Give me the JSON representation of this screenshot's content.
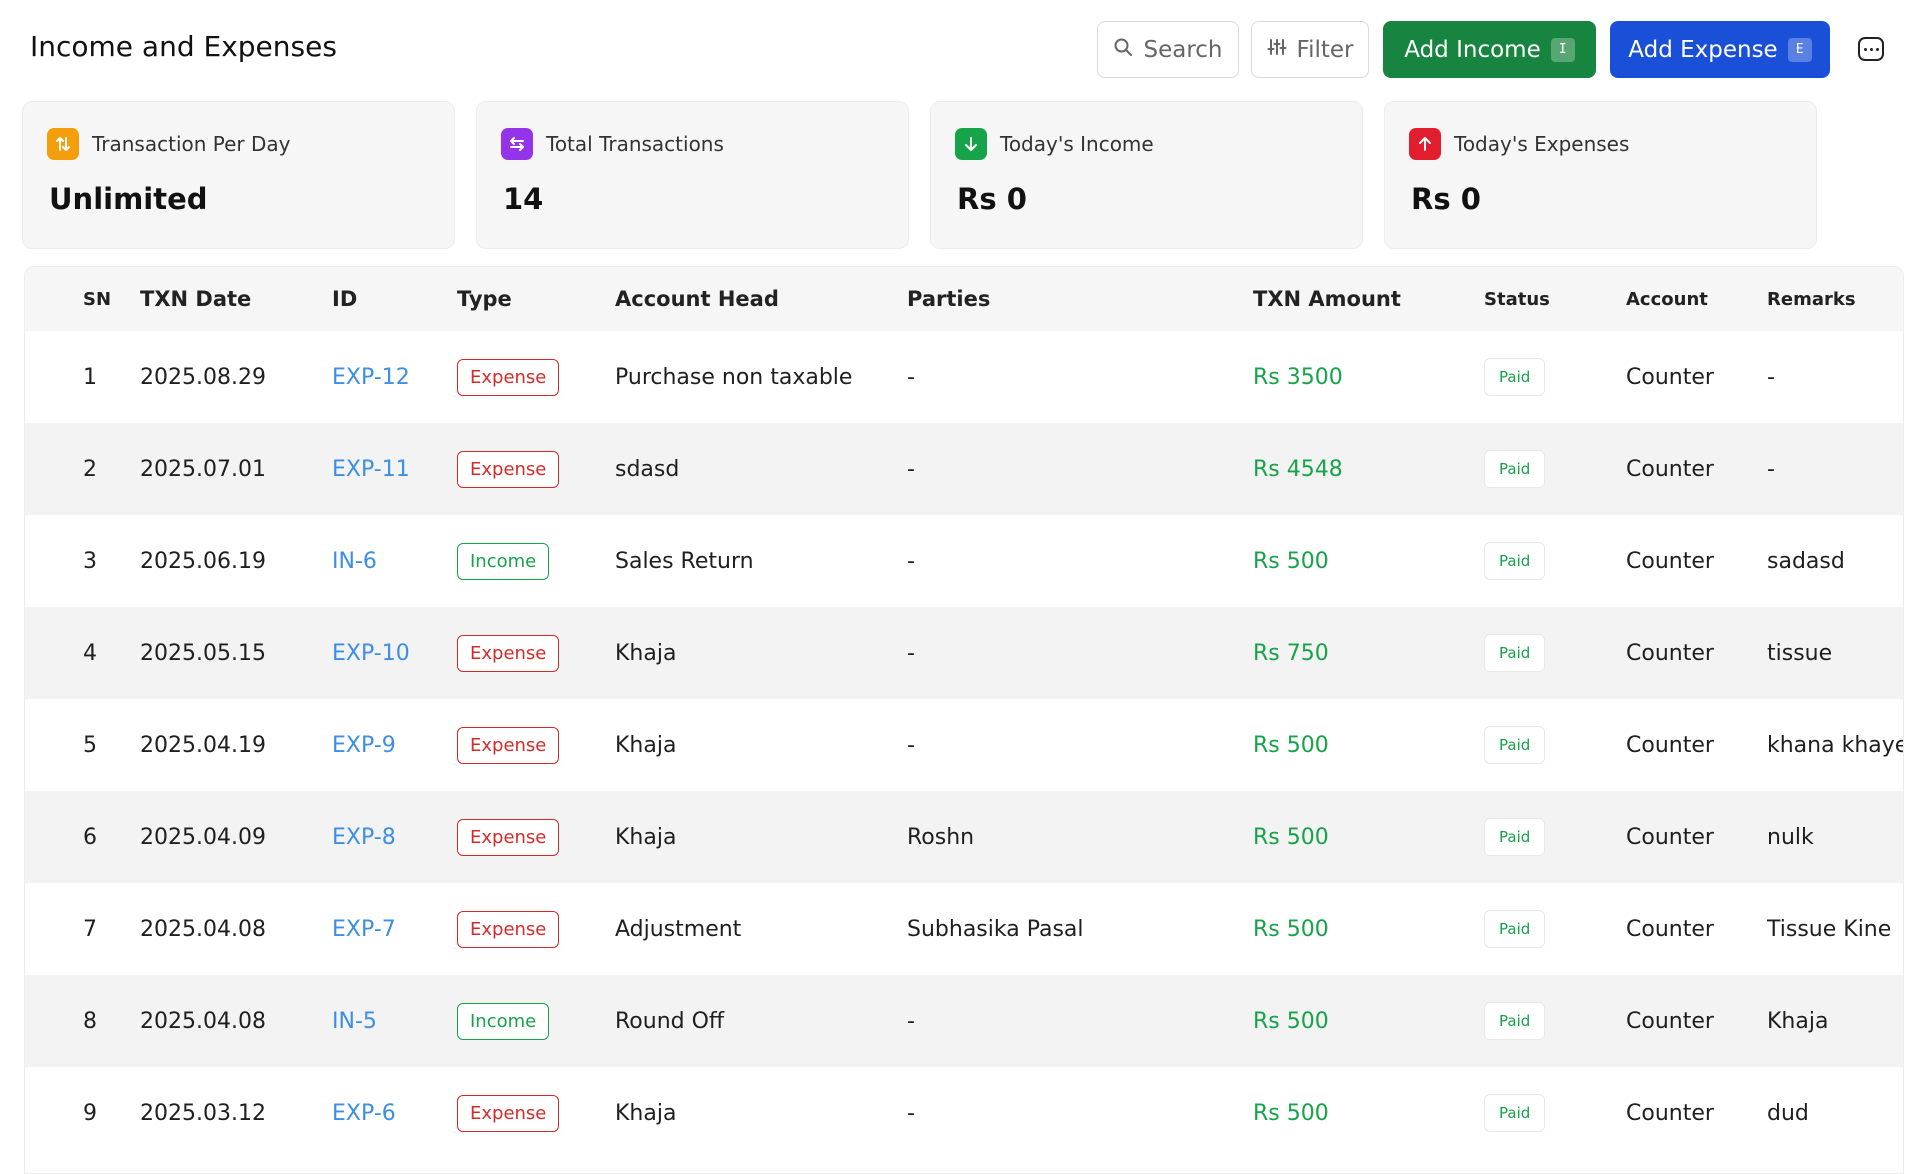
{
  "header": {
    "title": "Income and Expenses",
    "search_label": "Search",
    "filter_label": "Filter",
    "add_income_label": "Add Income",
    "add_income_shortcut": "I",
    "add_expense_label": "Add Expense",
    "add_expense_shortcut": "E"
  },
  "cards": [
    {
      "label": "Transaction Per Day",
      "value": "Unlimited",
      "icon": "arrows-up-down-icon",
      "color": "#f59e0b"
    },
    {
      "label": "Total Transactions",
      "value": "14",
      "icon": "arrows-left-right-icon",
      "color": "#9333ea"
    },
    {
      "label": "Today's Income",
      "value": "Rs 0",
      "icon": "arrow-down-icon",
      "color": "#16a34a"
    },
    {
      "label": "Today's Expenses",
      "value": "Rs 0",
      "icon": "arrow-up-icon",
      "color": "#e11d2e"
    }
  ],
  "table": {
    "columns": [
      "SN",
      "TXN Date",
      "ID",
      "Type",
      "Account Head",
      "Parties",
      "TXN Amount",
      "Status",
      "Account",
      "Remarks"
    ],
    "rows": [
      {
        "sn": "1",
        "date": "2025.08.29",
        "id": "EXP-12",
        "type": "Expense",
        "head": "Purchase non taxable",
        "parties": "-",
        "amount": "Rs 3500",
        "status": "Paid",
        "account": "Counter",
        "remarks": "-"
      },
      {
        "sn": "2",
        "date": "2025.07.01",
        "id": "EXP-11",
        "type": "Expense",
        "head": "sdasd",
        "parties": "-",
        "amount": "Rs 4548",
        "status": "Paid",
        "account": "Counter",
        "remarks": "-"
      },
      {
        "sn": "3",
        "date": "2025.06.19",
        "id": "IN-6",
        "type": "Income",
        "head": "Sales Return",
        "parties": "-",
        "amount": "Rs 500",
        "status": "Paid",
        "account": "Counter",
        "remarks": "sadasd"
      },
      {
        "sn": "4",
        "date": "2025.05.15",
        "id": "EXP-10",
        "type": "Expense",
        "head": "Khaja",
        "parties": "-",
        "amount": "Rs 750",
        "status": "Paid",
        "account": "Counter",
        "remarks": "tissue"
      },
      {
        "sn": "5",
        "date": "2025.04.19",
        "id": "EXP-9",
        "type": "Expense",
        "head": "Khaja",
        "parties": "-",
        "amount": "Rs 500",
        "status": "Paid",
        "account": "Counter",
        "remarks": "khana khaye"
      },
      {
        "sn": "6",
        "date": "2025.04.09",
        "id": "EXP-8",
        "type": "Expense",
        "head": "Khaja",
        "parties": "Roshn",
        "amount": "Rs 500",
        "status": "Paid",
        "account": "Counter",
        "remarks": "nulk"
      },
      {
        "sn": "7",
        "date": "2025.04.08",
        "id": "EXP-7",
        "type": "Expense",
        "head": "Adjustment",
        "parties": "Subhasika Pasal",
        "amount": "Rs 500",
        "status": "Paid",
        "account": "Counter",
        "remarks": "Tissue Kine"
      },
      {
        "sn": "8",
        "date": "2025.04.08",
        "id": "IN-5",
        "type": "Income",
        "head": "Round Off",
        "parties": "-",
        "amount": "Rs 500",
        "status": "Paid",
        "account": "Counter",
        "remarks": "Khaja"
      },
      {
        "sn": "9",
        "date": "2025.03.12",
        "id": "EXP-6",
        "type": "Expense",
        "head": "Khaja",
        "parties": "-",
        "amount": "Rs 500",
        "status": "Paid",
        "account": "Counter",
        "remarks": "dud"
      }
    ]
  }
}
